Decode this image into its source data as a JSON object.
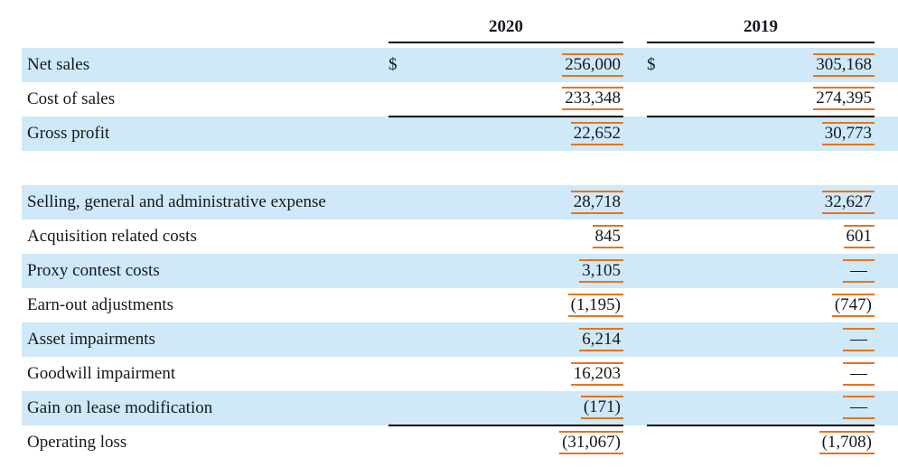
{
  "table": {
    "columns": [
      {
        "year": "2020"
      },
      {
        "year": "2019"
      }
    ],
    "colors": {
      "row_highlight": "#cfe9f8",
      "annotation_mark": "#e8731c",
      "rule": "#000000"
    },
    "rows": [
      {
        "label": "Net sales",
        "d2020": "$",
        "v2020": "256,000",
        "d2019": "$",
        "v2019": "305,168"
      },
      {
        "label": "Cost of sales",
        "v2020": "233,348",
        "v2019": "274,395"
      },
      {
        "label": "Gross profit",
        "v2020": "22,652",
        "v2019": "30,773"
      },
      {
        "label": "",
        "v2020": "",
        "v2019": ""
      },
      {
        "label": "Selling, general and administrative expense",
        "v2020": "28,718",
        "v2019": "32,627"
      },
      {
        "label": "Acquisition related costs",
        "v2020": "845",
        "v2019": "601"
      },
      {
        "label": "Proxy contest costs",
        "v2020": "3,105",
        "v2019": "—"
      },
      {
        "label": "Earn-out adjustments",
        "v2020": "(1,195)",
        "v2019": "(747)"
      },
      {
        "label": "Asset impairments",
        "v2020": "6,214",
        "v2019": "—"
      },
      {
        "label": "Goodwill impairment",
        "v2020": "16,203",
        "v2019": "—"
      },
      {
        "label": "Gain on lease modification",
        "v2020": "(171)",
        "v2019": "—"
      },
      {
        "label": "Operating loss",
        "v2020": "(31,067)",
        "v2019": "(1,708)"
      }
    ]
  }
}
